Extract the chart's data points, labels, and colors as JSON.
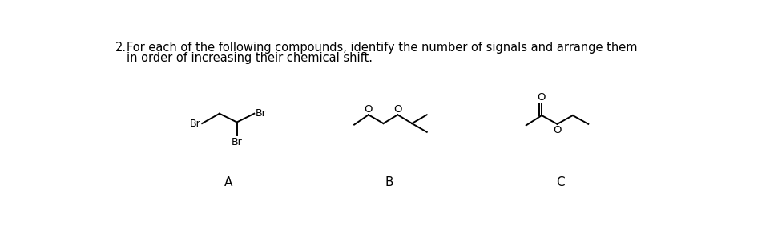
{
  "background_color": "#ffffff",
  "text_color": "#000000",
  "question_number": "2.",
  "question_line1": "For each of the following compounds, identify the number of signals and arrange them",
  "question_line2": "in order of increasing their chemical shift.",
  "label_A": "A",
  "label_B": "B",
  "label_C": "C",
  "figsize": [
    9.76,
    3.02
  ],
  "dpi": 100
}
